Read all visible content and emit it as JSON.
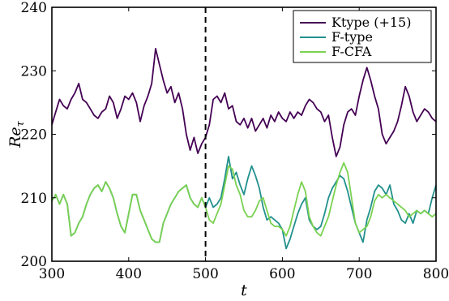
{
  "chart_data": {
    "type": "line",
    "xlabel": "t",
    "ylabel": "Re",
    "ylabel_subscript": "τ",
    "xlim": [
      300,
      800
    ],
    "ylim": [
      200,
      240
    ],
    "xticks": [
      300,
      400,
      500,
      600,
      700,
      800
    ],
    "yticks": [
      200,
      210,
      220,
      230,
      240
    ],
    "grid": false,
    "legend_position": "top-right",
    "vline": {
      "x": 500,
      "style": "dashed",
      "color": "#000000"
    },
    "series": [
      {
        "name": "Ktype (+15)",
        "color": "#440154",
        "x": [
          300,
          305,
          310,
          315,
          320,
          325,
          330,
          335,
          340,
          345,
          350,
          355,
          360,
          365,
          370,
          375,
          380,
          385,
          390,
          395,
          400,
          405,
          410,
          415,
          420,
          425,
          430,
          435,
          440,
          445,
          450,
          455,
          460,
          465,
          470,
          475,
          480,
          485,
          490,
          495,
          500,
          505,
          510,
          515,
          520,
          525,
          530,
          535,
          540,
          545,
          550,
          555,
          560,
          565,
          570,
          575,
          580,
          585,
          590,
          595,
          600,
          605,
          610,
          615,
          620,
          625,
          630,
          635,
          640,
          645,
          650,
          655,
          660,
          665,
          670,
          675,
          680,
          685,
          690,
          695,
          700,
          705,
          710,
          715,
          720,
          725,
          730,
          735,
          740,
          745,
          750,
          755,
          760,
          765,
          770,
          775,
          780,
          785,
          790,
          795,
          800
        ],
        "values": [
          221.5,
          223.5,
          225.5,
          224.5,
          224.0,
          225.5,
          226.5,
          228.0,
          225.5,
          225.0,
          224.0,
          223.0,
          222.5,
          223.5,
          224.0,
          226.0,
          225.0,
          222.5,
          224.0,
          226.0,
          225.5,
          226.5,
          225.0,
          222.0,
          224.5,
          226.0,
          228.0,
          233.5,
          231.0,
          228.5,
          226.5,
          227.5,
          225.0,
          226.5,
          224.0,
          220.0,
          217.5,
          219.5,
          217.0,
          218.5,
          219.5,
          221.5,
          225.5,
          226.0,
          225.0,
          226.5,
          224.0,
          224.5,
          222.0,
          221.5,
          222.5,
          221.0,
          222.5,
          220.5,
          221.5,
          222.5,
          221.0,
          223.0,
          222.0,
          223.5,
          222.5,
          222.0,
          223.5,
          222.5,
          223.5,
          223.0,
          224.5,
          225.5,
          225.0,
          224.0,
          223.5,
          222.0,
          223.0,
          219.5,
          216.5,
          218.0,
          221.5,
          223.5,
          224.0,
          223.0,
          226.0,
          228.5,
          230.5,
          228.5,
          226.0,
          224.0,
          220.0,
          218.5,
          219.5,
          220.5,
          222.0,
          224.5,
          227.5,
          226.0,
          223.5,
          222.0,
          223.0,
          224.0,
          223.5,
          222.5,
          222.0
        ]
      },
      {
        "name": "F-type",
        "color": "#21908d",
        "x": [
          300,
          305,
          310,
          315,
          320,
          325,
          330,
          335,
          340,
          345,
          350,
          355,
          360,
          365,
          370,
          375,
          380,
          385,
          390,
          395,
          400,
          405,
          410,
          415,
          420,
          425,
          430,
          435,
          440,
          445,
          450,
          455,
          460,
          465,
          470,
          475,
          480,
          485,
          490,
          495,
          500,
          505,
          510,
          515,
          520,
          525,
          530,
          535,
          540,
          545,
          550,
          555,
          560,
          565,
          570,
          575,
          580,
          585,
          590,
          595,
          600,
          605,
          610,
          615,
          620,
          625,
          630,
          635,
          640,
          645,
          650,
          655,
          660,
          665,
          670,
          675,
          680,
          685,
          690,
          695,
          700,
          705,
          710,
          715,
          720,
          725,
          730,
          735,
          740,
          745,
          750,
          755,
          760,
          765,
          770,
          775,
          780,
          785,
          790,
          795,
          800
        ],
        "values": [
          209.5,
          210.5,
          209.0,
          210.5,
          209.0,
          204.0,
          204.5,
          206.0,
          207.0,
          209.0,
          210.5,
          211.5,
          212.0,
          211.0,
          212.5,
          211.5,
          210.0,
          207.5,
          205.5,
          204.5,
          207.5,
          210.5,
          210.5,
          208.0,
          206.5,
          205.0,
          203.5,
          203.0,
          203.0,
          206.0,
          207.5,
          209.0,
          210.0,
          211.0,
          211.5,
          212.0,
          210.0,
          209.0,
          208.5,
          210.0,
          208.5,
          210.0,
          208.5,
          209.0,
          210.0,
          213.0,
          216.5,
          213.0,
          214.0,
          212.0,
          210.5,
          213.0,
          215.0,
          213.5,
          211.5,
          208.5,
          206.5,
          207.0,
          206.5,
          206.0,
          205.0,
          202.0,
          203.5,
          205.5,
          207.5,
          209.0,
          210.0,
          206.5,
          205.5,
          205.0,
          205.5,
          207.5,
          210.0,
          211.5,
          212.5,
          213.5,
          213.0,
          211.0,
          208.5,
          206.0,
          204.5,
          203.0,
          206.5,
          208.5,
          211.0,
          212.0,
          211.5,
          210.5,
          212.0,
          209.0,
          208.0,
          206.5,
          206.0,
          207.5,
          206.0,
          208.0,
          207.5,
          208.0,
          207.5,
          210.0,
          212.0
        ]
      },
      {
        "name": "F-CFA",
        "color": "#7ad151",
        "x": [
          300,
          305,
          310,
          315,
          320,
          325,
          330,
          335,
          340,
          345,
          350,
          355,
          360,
          365,
          370,
          375,
          380,
          385,
          390,
          395,
          400,
          405,
          410,
          415,
          420,
          425,
          430,
          435,
          440,
          445,
          450,
          455,
          460,
          465,
          470,
          475,
          480,
          485,
          490,
          495,
          500,
          505,
          510,
          515,
          520,
          525,
          530,
          535,
          540,
          545,
          550,
          555,
          560,
          565,
          570,
          575,
          580,
          585,
          590,
          595,
          600,
          605,
          610,
          615,
          620,
          625,
          630,
          635,
          640,
          645,
          650,
          655,
          660,
          665,
          670,
          675,
          680,
          685,
          690,
          695,
          700,
          705,
          710,
          715,
          720,
          725,
          730,
          735,
          740,
          745,
          750,
          755,
          760,
          765,
          770,
          775,
          780,
          785,
          790,
          795,
          800
        ],
        "values": [
          209.5,
          210.5,
          209.0,
          210.5,
          209.0,
          204.0,
          204.5,
          206.0,
          207.0,
          209.0,
          210.5,
          211.5,
          212.0,
          211.0,
          212.5,
          211.5,
          210.0,
          207.5,
          205.5,
          204.5,
          207.5,
          210.5,
          210.5,
          208.0,
          206.5,
          205.0,
          203.5,
          203.0,
          203.0,
          206.0,
          207.5,
          209.0,
          210.0,
          211.0,
          211.5,
          212.0,
          210.0,
          209.0,
          208.5,
          210.0,
          208.5,
          206.5,
          206.0,
          207.5,
          209.0,
          212.0,
          215.0,
          214.5,
          212.0,
          210.5,
          208.0,
          207.0,
          207.0,
          208.0,
          209.5,
          210.0,
          208.0,
          206.0,
          205.5,
          205.5,
          205.0,
          204.0,
          205.5,
          208.0,
          210.5,
          212.5,
          211.0,
          207.0,
          205.5,
          204.5,
          204.0,
          205.5,
          207.0,
          209.5,
          212.0,
          214.0,
          215.5,
          214.0,
          210.0,
          206.0,
          204.5,
          205.0,
          205.5,
          207.0,
          209.5,
          210.5,
          210.0,
          210.5,
          210.0,
          209.5,
          209.0,
          208.5,
          208.0,
          207.0,
          207.5,
          208.0,
          207.5,
          208.0,
          207.5,
          207.0,
          207.5
        ]
      }
    ]
  }
}
